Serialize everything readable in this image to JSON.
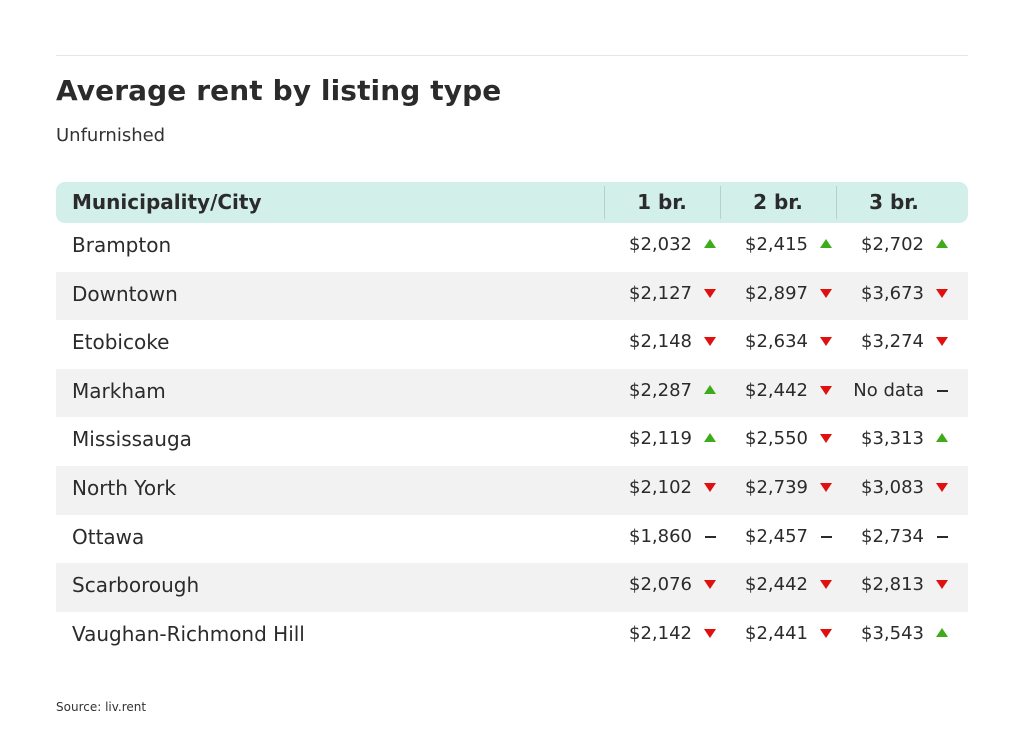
{
  "header": {
    "title": "Average rent by listing type",
    "subtitle": "Unfurnished"
  },
  "table": {
    "columns": [
      "Municipality/City",
      "1 br.",
      "2 br.",
      "3 br."
    ],
    "rows": [
      {
        "city": "Brampton",
        "cells": [
          {
            "value": "$2,032",
            "trend": "up"
          },
          {
            "value": "$2,415",
            "trend": "up"
          },
          {
            "value": "$2,702",
            "trend": "up"
          }
        ]
      },
      {
        "city": "Downtown",
        "cells": [
          {
            "value": "$2,127",
            "trend": "down"
          },
          {
            "value": "$2,897",
            "trend": "down"
          },
          {
            "value": "$3,673",
            "trend": "down"
          }
        ]
      },
      {
        "city": "Etobicoke",
        "cells": [
          {
            "value": "$2,148",
            "trend": "down"
          },
          {
            "value": "$2,634",
            "trend": "down"
          },
          {
            "value": "$3,274",
            "trend": "down"
          }
        ]
      },
      {
        "city": "Markham",
        "cells": [
          {
            "value": "$2,287",
            "trend": "up"
          },
          {
            "value": "$2,442",
            "trend": "down"
          },
          {
            "value": "No data",
            "trend": "flat"
          }
        ]
      },
      {
        "city": "Mississauga",
        "cells": [
          {
            "value": "$2,119",
            "trend": "up"
          },
          {
            "value": "$2,550",
            "trend": "down"
          },
          {
            "value": "$3,313",
            "trend": "up"
          }
        ]
      },
      {
        "city": "North York",
        "cells": [
          {
            "value": "$2,102",
            "trend": "down"
          },
          {
            "value": "$2,739",
            "trend": "down"
          },
          {
            "value": "$3,083",
            "trend": "down"
          }
        ]
      },
      {
        "city": "Ottawa",
        "cells": [
          {
            "value": "$1,860",
            "trend": "flat"
          },
          {
            "value": "$2,457",
            "trend": "flat"
          },
          {
            "value": "$2,734",
            "trend": "flat"
          }
        ]
      },
      {
        "city": "Scarborough",
        "cells": [
          {
            "value": "$2,076",
            "trend": "down"
          },
          {
            "value": "$2,442",
            "trend": "down"
          },
          {
            "value": "$2,813",
            "trend": "down"
          }
        ]
      },
      {
        "city": "Vaughan-Richmond Hill",
        "cells": [
          {
            "value": "$2,142",
            "trend": "down"
          },
          {
            "value": "$2,441",
            "trend": "down"
          },
          {
            "value": "$3,543",
            "trend": "up"
          }
        ]
      }
    ]
  },
  "trend_icons": {
    "up": "triangle-up-icon",
    "down": "triangle-down-icon",
    "flat": "dash-icon"
  },
  "colors": {
    "header_bg": "#d2efea",
    "row_alt_bg": "#f2f2f2",
    "up": "#3dab1a",
    "down": "#e01010",
    "flat": "#2b2b2b"
  },
  "footer": {
    "source": "Source: liv.rent"
  }
}
